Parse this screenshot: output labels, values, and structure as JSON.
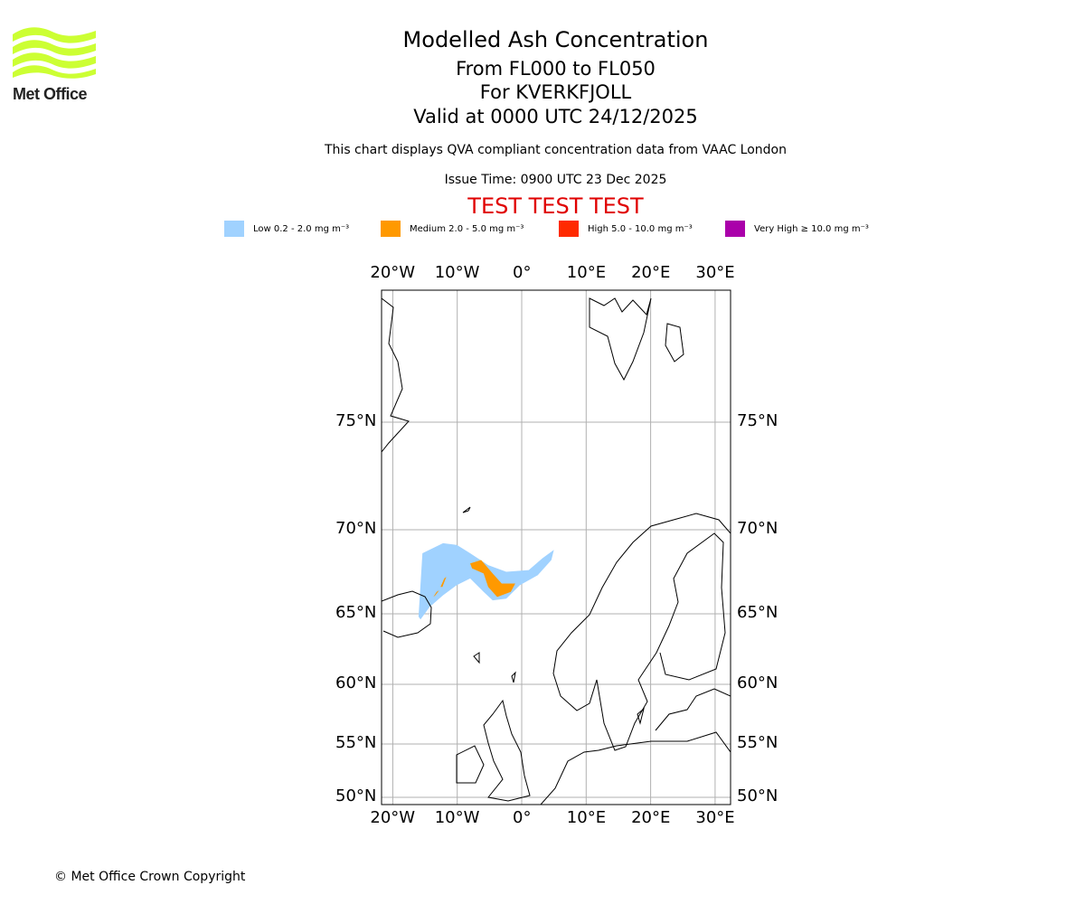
{
  "header": {
    "title": "Modelled Ash Concentration",
    "levels": "From FL000 to FL050",
    "volcano": "For KVERKFJOLL",
    "valid": "Valid at 0000 UTC 24/12/2025",
    "description": "This chart displays QVA compliant concentration data from VAAC London",
    "issue_time": "Issue Time: 0900 UTC 23 Dec 2025",
    "test_banner": "TEST TEST TEST",
    "test_color": "#e00000"
  },
  "logo": {
    "text": "Met Office",
    "color": "#ccff33"
  },
  "legend": [
    {
      "label": "Low 0.2 - 2.0 mg m⁻³",
      "color": "#a0d2ff"
    },
    {
      "label": "Medium 2.0 - 5.0 mg m⁻³",
      "color": "#ff9900"
    },
    {
      "label": "High 5.0 - 10.0 mg m⁻³",
      "color": "#ff2a00"
    },
    {
      "label": "Very High ≥ 10.0 mg m⁻³",
      "color": "#aa00aa"
    }
  ],
  "footer": {
    "copyright": "© Met Office Crown Copyright"
  },
  "chart_data": {
    "type": "map",
    "title": "Modelled Ash Concentration",
    "lon_ticks": [
      {
        "value": -20,
        "label": "20°W"
      },
      {
        "value": -10,
        "label": "10°W"
      },
      {
        "value": 0,
        "label": "0°"
      },
      {
        "value": 10,
        "label": "10°E"
      },
      {
        "value": 20,
        "label": "20°E"
      },
      {
        "value": 30,
        "label": "30°E"
      }
    ],
    "lat_ticks": [
      {
        "value": 75,
        "label": "75°N"
      },
      {
        "value": 70,
        "label": "70°N"
      },
      {
        "value": 65,
        "label": "65°N"
      },
      {
        "value": 60,
        "label": "60°N"
      },
      {
        "value": 55,
        "label": "55°N"
      },
      {
        "value": 50,
        "label": "50°N"
      }
    ],
    "grid": true,
    "plume": [
      {
        "level": "Low",
        "color": "#a0d2ff",
        "polygon": [
          [
            -16.0,
            64.8
          ],
          [
            -15.4,
            68.6
          ],
          [
            -12.2,
            69.2
          ],
          [
            -10.1,
            69.1
          ],
          [
            -8.0,
            68.6
          ],
          [
            -5.2,
            67.9
          ],
          [
            -2.4,
            67.5
          ],
          [
            1.1,
            67.6
          ],
          [
            3.2,
            68.3
          ],
          [
            5.0,
            68.8
          ],
          [
            4.6,
            68.2
          ],
          [
            2.5,
            67.3
          ],
          [
            -0.3,
            66.7
          ],
          [
            -2.4,
            65.9
          ],
          [
            -4.5,
            65.8
          ],
          [
            -5.9,
            66.3
          ],
          [
            -8.0,
            67.1
          ],
          [
            -10.1,
            66.7
          ],
          [
            -12.2,
            66.1
          ],
          [
            -14.3,
            65.4
          ],
          [
            -15.7,
            64.6
          ]
        ]
      },
      {
        "level": "Medium",
        "color": "#ff9900",
        "polygon": [
          [
            -8.0,
            68.0
          ],
          [
            -6.3,
            68.2
          ],
          [
            -4.5,
            67.4
          ],
          [
            -3.1,
            66.8
          ],
          [
            -1.0,
            66.8
          ],
          [
            -1.7,
            66.3
          ],
          [
            -3.8,
            66.0
          ],
          [
            -5.2,
            66.6
          ],
          [
            -5.9,
            67.4
          ],
          [
            -7.7,
            67.7
          ]
        ]
      },
      {
        "level": "Medium",
        "color": "#ff9900",
        "polygon": [
          [
            -12.0,
            67.1
          ],
          [
            -11.7,
            67.2
          ],
          [
            -12.3,
            66.6
          ],
          [
            -12.6,
            66.6
          ]
        ]
      },
      {
        "level": "Medium",
        "color": "#ff9900",
        "polygon": [
          [
            -13.2,
            66.3
          ],
          [
            -12.8,
            66.4
          ],
          [
            -13.4,
            66.1
          ],
          [
            -13.7,
            66.0
          ]
        ]
      }
    ]
  }
}
